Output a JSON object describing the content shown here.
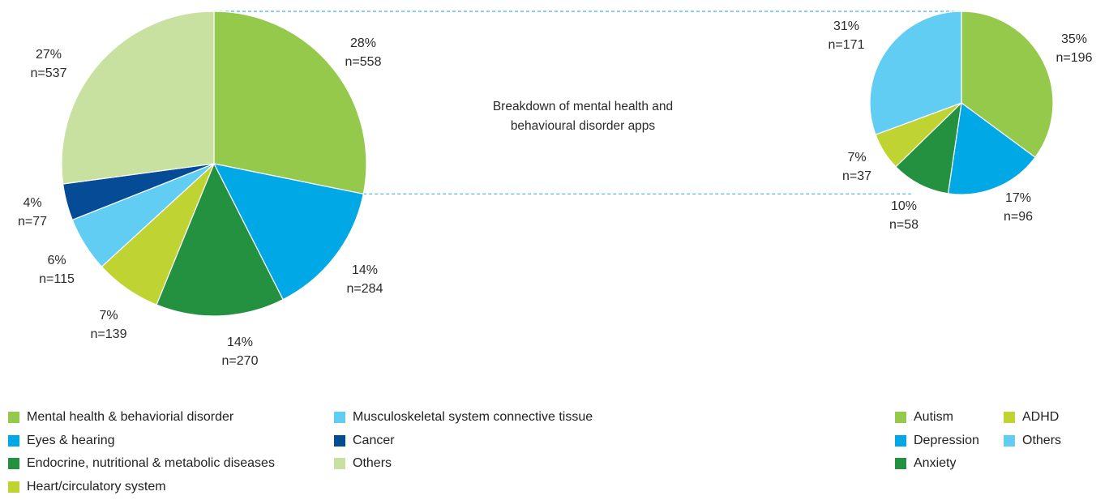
{
  "chart_data": [
    {
      "type": "pie",
      "slices": [
        {
          "label": "Mental health & behaviorial disorder",
          "pct_label": "28%",
          "n_label": "n=558",
          "value": 558,
          "color": "#95c94c"
        },
        {
          "label": "Eyes & hearing",
          "pct_label": "14%",
          "n_label": "n=284",
          "value": 284,
          "color": "#00a9e6"
        },
        {
          "label": "Endocrine, nutritional & metabolic diseases",
          "pct_label": "14%",
          "n_label": "n=270",
          "value": 270,
          "color": "#23913f"
        },
        {
          "label": "Heart/circulatory system",
          "pct_label": "7%",
          "n_label": "n=139",
          "value": 139,
          "color": "#bfd432"
        },
        {
          "label": "Musculoskeletal system connective tissue",
          "pct_label": "6%",
          "n_label": "n=115",
          "value": 115,
          "color": "#62cdf3"
        },
        {
          "label": "Cancer",
          "pct_label": "4%",
          "n_label": "n=77",
          "value": 77,
          "color": "#054b96"
        },
        {
          "label": "Others",
          "pct_label": "27%",
          "n_label": "n=537",
          "value": 537,
          "color": "#c8e1a0"
        }
      ]
    },
    {
      "type": "pie",
      "title": "Breakdown of mental health and behavioural disorder apps",
      "slices": [
        {
          "label": "Autism",
          "pct_label": "35%",
          "n_label": "n=196",
          "value": 196,
          "color": "#95c94c"
        },
        {
          "label": "Depression",
          "pct_label": "17%",
          "n_label": "n=96",
          "value": 96,
          "color": "#00a9e6"
        },
        {
          "label": "Anxiety",
          "pct_label": "10%",
          "n_label": "n=58",
          "value": 58,
          "color": "#23913f"
        },
        {
          "label": "ADHD",
          "pct_label": "7%",
          "n_label": "n=37",
          "value": 37,
          "color": "#bfd432"
        },
        {
          "label": "Others",
          "pct_label": "31%",
          "n_label": "n=171",
          "value": 171,
          "color": "#62cdf3"
        }
      ]
    }
  ],
  "legends": {
    "main": [
      {
        "label": "Mental health & behaviorial disorder",
        "color": "#95c94c"
      },
      {
        "label": "Eyes & hearing",
        "color": "#00a9e6"
      },
      {
        "label": "Endocrine, nutritional & metabolic diseases",
        "color": "#23913f"
      },
      {
        "label": "Heart/circulatory system",
        "color": "#bfd432"
      },
      {
        "label": "Musculoskeletal system connective tissue",
        "color": "#62cdf3"
      },
      {
        "label": "Cancer",
        "color": "#054b96"
      },
      {
        "label": "Others",
        "color": "#c8e1a0"
      }
    ],
    "breakdown": [
      {
        "label": "Autism",
        "color": "#95c94c"
      },
      {
        "label": "Depression",
        "color": "#00a9e6"
      },
      {
        "label": "Anxiety",
        "color": "#23913f"
      },
      {
        "label": "ADHD",
        "color": "#bfd432"
      },
      {
        "label": "Others",
        "color": "#62cdf3"
      }
    ]
  },
  "connector_color": "#3fb4e0"
}
